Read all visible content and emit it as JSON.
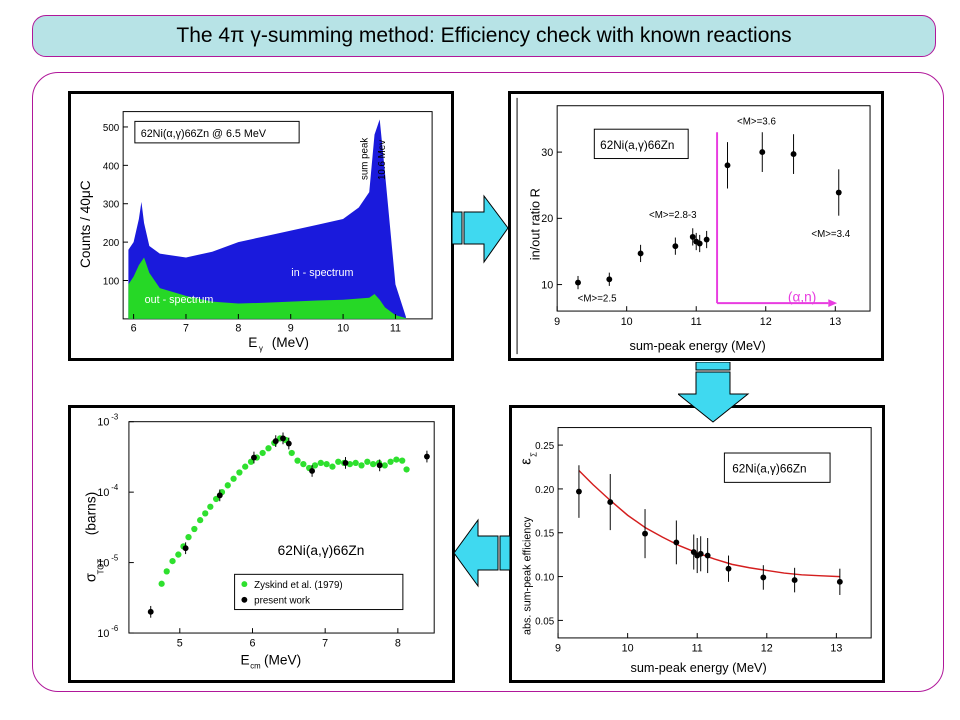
{
  "slide": {
    "title": "The 4π γ-summing method: Efficiency check with known reactions"
  },
  "panel_spectrum": {
    "legend": "62Ni(α,γ)66Zn  @  6.5 MeV",
    "peak_label_1": "sum peak",
    "peak_label_2": "10.6  Mev",
    "in_label": "in - spectrum",
    "out_label": "out - spectrum",
    "xlabel": "E",
    "xlabel_sub": "γ",
    "xlabel_unit": "(MeV)",
    "ylabel": "Counts / 40μC",
    "xticks": [
      "6",
      "7",
      "8",
      "9",
      "10",
      "11"
    ],
    "yticks": [
      "100",
      "200",
      "300",
      "400",
      "500"
    ],
    "colors": {
      "in": "#1a1adc",
      "out": "#26d826"
    }
  },
  "panel_ratio": {
    "legend": "62Ni(a,γ)66Zn",
    "ylabel": "in/out ratio R",
    "xlabel": "sum-peak energy   (MeV)",
    "xticks": [
      "9",
      "10",
      "11",
      "12",
      "13"
    ],
    "yticks": [
      "10",
      "20",
      "30"
    ],
    "annotations": [
      "<M>=2.5",
      "<M>=2.8-3",
      "<M>=3.6",
      "<M>=3.4"
    ],
    "threshold_label": "(α,n)",
    "threshold_color": "#e83ce0"
  },
  "panel_efficiency": {
    "legend": "62Ni(a,γ)66Zn",
    "ylabel": "abs. sum-peak efficiency",
    "ysymbol": "ε",
    "ysymbol_sub": "Σ",
    "xlabel": "sum-peak energy   (MeV)",
    "xticks": [
      "9",
      "10",
      "11",
      "12",
      "13"
    ],
    "yticks": [
      "0.05",
      "0.10",
      "0.15",
      "0.20",
      "0.25"
    ],
    "fit_color": "#d41e1e"
  },
  "panel_cross_section": {
    "legend": "62Ni(a,γ)66Zn",
    "ylabel": "σ",
    "ylabel_sub": "TOT",
    "ylabel_unit": "(barns)",
    "xlabel": "E",
    "xlabel_sub": "cm",
    "xlabel_unit": "(MeV)",
    "xticks": [
      "5",
      "6",
      "7",
      "8"
    ],
    "yticks": [
      {
        "base": "10",
        "exp": "-3"
      },
      {
        "base": "10",
        "exp": "-4"
      },
      {
        "base": "10",
        "exp": "-5"
      },
      {
        "base": "10",
        "exp": "-6"
      }
    ],
    "legend_entries": [
      "Zyskind et al. (1979)",
      "present work"
    ],
    "colors": {
      "zyskind": "#2ee02e",
      "present": "#000000"
    }
  },
  "chart_data": [
    {
      "type": "area",
      "x_unit": "MeV",
      "xlim": [
        5.8,
        11.7
      ],
      "ylim": [
        0,
        540
      ],
      "series": [
        {
          "name": "in - spectrum",
          "x": [
            5.9,
            6.0,
            6.1,
            6.15,
            6.2,
            6.3,
            6.5,
            7.0,
            7.5,
            8.0,
            8.5,
            9.0,
            9.5,
            10.0,
            10.3,
            10.5,
            10.6,
            10.7,
            10.8,
            11.0,
            11.2
          ],
          "values": [
            180,
            200,
            260,
            305,
            250,
            190,
            170,
            160,
            175,
            200,
            215,
            230,
            245,
            260,
            290,
            330,
            480,
            520,
            380,
            90,
            5
          ]
        },
        {
          "name": "out - spectrum",
          "x": [
            5.9,
            6.0,
            6.1,
            6.2,
            6.3,
            6.5,
            7.0,
            7.5,
            8.0,
            8.5,
            9.0,
            9.5,
            10.0,
            10.5,
            10.6,
            10.7,
            10.8,
            11.0,
            11.2
          ],
          "values": [
            90,
            110,
            140,
            160,
            120,
            80,
            60,
            45,
            40,
            42,
            45,
            48,
            50,
            55,
            65,
            50,
            30,
            10,
            2
          ]
        }
      ]
    },
    {
      "type": "scatter",
      "x_unit": "MeV",
      "xlim": [
        9,
        13.5
      ],
      "ylim": [
        6,
        37
      ],
      "points": [
        {
          "x": 9.3,
          "y": 10.3,
          "err": 1.0
        },
        {
          "x": 9.75,
          "y": 10.8,
          "err": 1.0
        },
        {
          "x": 10.2,
          "y": 14.7,
          "err": 1.3
        },
        {
          "x": 10.7,
          "y": 15.8,
          "err": 1.3
        },
        {
          "x": 10.95,
          "y": 17.2,
          "err": 1.3
        },
        {
          "x": 11.0,
          "y": 16.5,
          "err": 1.3
        },
        {
          "x": 11.05,
          "y": 16.2,
          "err": 1.3
        },
        {
          "x": 11.15,
          "y": 16.8,
          "err": 1.3
        },
        {
          "x": 11.45,
          "y": 28.0,
          "err": 3.5
        },
        {
          "x": 11.95,
          "y": 30.0,
          "err": 3.0
        },
        {
          "x": 12.4,
          "y": 29.7,
          "err": 3.0
        },
        {
          "x": 13.05,
          "y": 23.9,
          "err": 3.5
        }
      ],
      "threshold_x": 11.3
    },
    {
      "type": "scatter",
      "x_unit": "MeV",
      "xlim": [
        9,
        13.5
      ],
      "ylim": [
        0.03,
        0.27
      ],
      "points": [
        {
          "x": 9.3,
          "y": 0.197,
          "err": 0.03
        },
        {
          "x": 9.75,
          "y": 0.185,
          "err": 0.032
        },
        {
          "x": 10.25,
          "y": 0.149,
          "err": 0.028
        },
        {
          "x": 10.7,
          "y": 0.139,
          "err": 0.025
        },
        {
          "x": 10.95,
          "y": 0.128,
          "err": 0.02
        },
        {
          "x": 11.0,
          "y": 0.124,
          "err": 0.02
        },
        {
          "x": 11.05,
          "y": 0.126,
          "err": 0.02
        },
        {
          "x": 11.15,
          "y": 0.124,
          "err": 0.02
        },
        {
          "x": 11.45,
          "y": 0.109,
          "err": 0.015
        },
        {
          "x": 11.95,
          "y": 0.099,
          "err": 0.014
        },
        {
          "x": 12.4,
          "y": 0.096,
          "err": 0.014
        },
        {
          "x": 13.05,
          "y": 0.094,
          "err": 0.015
        }
      ],
      "fit": {
        "x": [
          9.3,
          9.5,
          9.75,
          10.0,
          10.25,
          10.5,
          10.75,
          11.0,
          11.25,
          11.5,
          11.75,
          12.0,
          12.25,
          12.5,
          12.75,
          13.05
        ],
        "y": [
          0.221,
          0.205,
          0.187,
          0.17,
          0.156,
          0.145,
          0.135,
          0.127,
          0.12,
          0.114,
          0.11,
          0.107,
          0.104,
          0.102,
          0.101,
          0.1
        ]
      }
    },
    {
      "type": "scatter",
      "x_unit": "MeV",
      "xlim": [
        4.3,
        8.5
      ],
      "ylim_log10": [
        -6,
        -3
      ],
      "series": [
        {
          "name": "Zyskind et al. (1979)",
          "x": [
            4.75,
            4.82,
            4.9,
            4.98,
            5.05,
            5.12,
            5.2,
            5.28,
            5.35,
            5.42,
            5.5,
            5.58,
            5.66,
            5.74,
            5.82,
            5.9,
            5.98,
            6.06,
            6.14,
            6.22,
            6.3,
            6.38,
            6.46,
            6.54,
            6.62,
            6.7,
            6.78,
            6.86,
            6.94,
            7.02,
            7.1,
            7.18,
            7.26,
            7.34,
            7.42,
            7.5,
            7.58,
            7.66,
            7.74,
            7.82,
            7.9,
            7.98,
            8.06,
            8.12
          ],
          "y": [
            5e-06,
            7.5e-06,
            1.05e-05,
            1.3e-05,
            1.7e-05,
            2.3e-05,
            3e-05,
            4e-05,
            5e-05,
            6.2e-05,
            8e-05,
            0.0001,
            0.000125,
            0.000155,
            0.00019,
            0.00023,
            0.00027,
            0.00031,
            0.00036,
            0.00042,
            0.0005,
            0.00058,
            0.00055,
            0.00036,
            0.00028,
            0.00025,
            0.00022,
            0.00024,
            0.00026,
            0.00025,
            0.00023,
            0.00027,
            0.00026,
            0.00025,
            0.00026,
            0.00024,
            0.00027,
            0.00025,
            0.00026,
            0.00024,
            0.00027,
            0.00029,
            0.00028,
            0.00021
          ]
        },
        {
          "name": "present work",
          "x": [
            4.6,
            5.08,
            5.55,
            6.02,
            6.32,
            6.42,
            6.5,
            6.82,
            7.28,
            7.75,
            8.4
          ],
          "y": [
            2e-06,
            1.6e-05,
            9e-05,
            0.00031,
            0.00053,
            0.00058,
            0.00049,
            0.0002,
            0.00026,
            0.00024,
            0.00032
          ]
        }
      ]
    }
  ]
}
